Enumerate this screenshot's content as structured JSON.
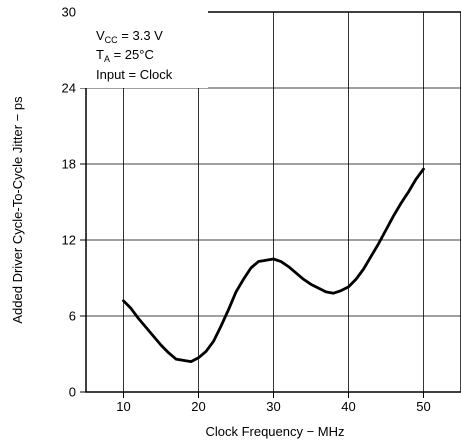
{
  "chart_data": {
    "type": "line",
    "title": "",
    "xlabel": "Clock Frequency −   MHz",
    "ylabel": "Added Driver Cycle-To-Cycle Jitter − ps",
    "xlim": [
      5,
      55
    ],
    "ylim": [
      0,
      30
    ],
    "x_ticks": [
      10,
      20,
      30,
      40,
      50
    ],
    "y_ticks": [
      0,
      6,
      12,
      18,
      24,
      30
    ],
    "x_tick_labels": [
      "10",
      "20",
      "30",
      "40",
      "50"
    ],
    "y_tick_labels": [
      "0",
      "6",
      "12",
      "18",
      "24",
      "30"
    ],
    "grid": true,
    "legend": "none",
    "series": [
      {
        "color": "#000000",
        "x": [
          10,
          11,
          12,
          13,
          14,
          15,
          16,
          17,
          18,
          19,
          20,
          21,
          22,
          23,
          24,
          25,
          26,
          27,
          28,
          29,
          30,
          31,
          32,
          33,
          34,
          35,
          36,
          37,
          38,
          39,
          40,
          41,
          42,
          43,
          44,
          45,
          46,
          47,
          48,
          49,
          50
        ],
        "y": [
          7.2,
          6.6,
          5.8,
          5.1,
          4.4,
          3.7,
          3.1,
          2.6,
          2.5,
          2.4,
          2.7,
          3.2,
          4.0,
          5.2,
          6.5,
          7.9,
          8.9,
          9.8,
          10.3,
          10.4,
          10.5,
          10.3,
          9.9,
          9.4,
          8.9,
          8.5,
          8.2,
          7.9,
          7.8,
          8.0,
          8.3,
          8.9,
          9.7,
          10.7,
          11.7,
          12.8,
          13.9,
          14.9,
          15.8,
          16.8,
          17.6
        ]
      }
    ],
    "annotations": {
      "line1_main": "V",
      "line1_sub": "CC",
      "line1_rest": " = 3.3 V",
      "line2_main": "T",
      "line2_sub": "A",
      "line2_rest": " = 25°C",
      "line3": "Input = Clock"
    }
  }
}
